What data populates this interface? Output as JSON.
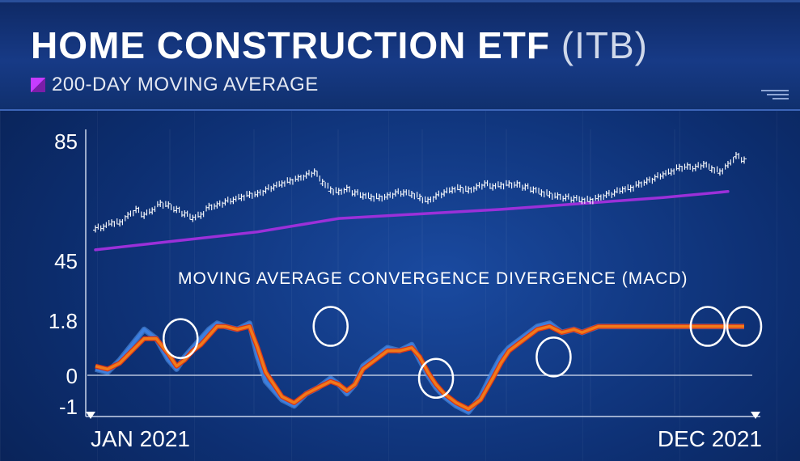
{
  "title": "HOME CONSTRUCTION ETF",
  "ticker": "(ITB)",
  "legend_label": "200-DAY MOVING AVERAGE",
  "colors": {
    "ma200": "#9b30d9",
    "price": "#ffffff",
    "macd_blue": "#3d7fe0",
    "macd_orange": "#f07a1a",
    "macd_red": "#d83418"
  },
  "chart_data": [
    {
      "type": "line",
      "title": "",
      "x_start_label": "JAN 2021",
      "x_end_label": "DEC 2021",
      "ylim": [
        45,
        85
      ],
      "yticks": [
        "85",
        "45"
      ],
      "series": [
        {
          "name": "",
          "style": "ohlc-bars",
          "x": [
            0,
            10,
            20,
            30,
            40,
            50,
            60,
            70,
            80,
            90,
            100,
            110,
            120,
            130,
            140,
            150,
            160,
            170,
            180,
            190,
            200,
            210,
            220,
            230,
            240,
            250,
            260,
            270,
            280,
            290,
            300,
            310,
            320,
            330,
            340,
            350,
            360,
            370,
            380,
            390,
            400,
            410,
            420,
            430,
            440,
            450,
            460,
            470,
            480,
            490,
            500,
            510,
            520,
            530,
            540,
            550,
            560,
            570,
            580,
            590,
            600,
            610,
            620,
            630,
            640,
            650,
            660,
            670,
            680,
            690,
            700,
            710,
            720,
            730,
            740,
            750,
            760,
            770,
            780,
            790,
            800
          ],
          "values": [
            55.0,
            55.5,
            57.0,
            57.0,
            59.5,
            61.5,
            59.5,
            61.0,
            63.5,
            63.0,
            61.5,
            60.0,
            58.5,
            59.5,
            62.5,
            63.0,
            64.0,
            64.5,
            65.5,
            66.5,
            66.8,
            68.0,
            69.0,
            70.0,
            71.0,
            72.0,
            73.0,
            74.0,
            70.5,
            68.0,
            67.5,
            68.5,
            67.0,
            66.0,
            65.5,
            65.5,
            66.0,
            67.0,
            67.0,
            66.5,
            65.5,
            64.5,
            66.0,
            67.0,
            68.0,
            68.5,
            68.0,
            69.0,
            70.0,
            69.0,
            69.5,
            70.0,
            70.0,
            69.0,
            68.0,
            67.0,
            66.5,
            66.0,
            65.5,
            65.0,
            64.5,
            64.5,
            65.5,
            66.5,
            67.0,
            68.0,
            68.5,
            70.0,
            71.0,
            72.0,
            73.0,
            74.0,
            75.5,
            76.0,
            75.5,
            76.5,
            75.0,
            74.0,
            76.5,
            79.5,
            78.0
          ]
        },
        {
          "name": "200-DAY MOVING AVERAGE",
          "style": "line",
          "x": [
            0,
            100,
            200,
            300,
            400,
            500,
            600,
            700,
            780
          ],
          "values": [
            48.0,
            51.0,
            54.0,
            58.5,
            60.0,
            61.5,
            63.5,
            65.5,
            67.5
          ]
        }
      ]
    },
    {
      "type": "line",
      "title": "MOVING AVERAGE CONVERGENCE DIVERGENCE (MACD)",
      "ylim": [
        -1.2,
        1.9
      ],
      "yticks": [
        "1.8",
        "0",
        "-1"
      ],
      "series": [
        {
          "name": "",
          "color": "#3d7fe0",
          "x": [
            0,
            15,
            30,
            45,
            60,
            75,
            90,
            100,
            110,
            120,
            130,
            140,
            150,
            160,
            175,
            190,
            200,
            210,
            220,
            230,
            245,
            260,
            275,
            290,
            300,
            310,
            320,
            330,
            345,
            360,
            375,
            390,
            400,
            410,
            420,
            430,
            445,
            460,
            475,
            490,
            500,
            510,
            520,
            530,
            545,
            560,
            575,
            590,
            600,
            610,
            620,
            630,
            645,
            660,
            675,
            690,
            700,
            710,
            720,
            730,
            745,
            760,
            775,
            790,
            800
          ],
          "values": [
            0.2,
            0.1,
            0.5,
            1.0,
            1.5,
            1.2,
            0.5,
            0.2,
            0.6,
            0.9,
            1.2,
            1.5,
            1.7,
            1.6,
            1.5,
            1.7,
            0.6,
            -0.2,
            -0.5,
            -0.8,
            -1.0,
            -0.6,
            -0.4,
            -0.1,
            -0.3,
            -0.6,
            -0.3,
            0.3,
            0.6,
            0.9,
            0.8,
            1.0,
            0.5,
            0.0,
            -0.4,
            -0.7,
            -1.0,
            -1.2,
            -0.7,
            0.1,
            0.6,
            0.9,
            1.1,
            1.3,
            1.6,
            1.7,
            1.4,
            1.5,
            1.4,
            1.5,
            1.6,
            1.6,
            1.6,
            1.6,
            1.6,
            1.6,
            1.6,
            1.6,
            1.6,
            1.6,
            1.6,
            1.6,
            1.6,
            1.6,
            1.6
          ]
        },
        {
          "name": "",
          "color": "#f07a1a",
          "x": [
            0,
            15,
            30,
            45,
            60,
            75,
            90,
            100,
            110,
            120,
            130,
            140,
            150,
            160,
            175,
            190,
            200,
            210,
            220,
            230,
            245,
            260,
            275,
            290,
            300,
            310,
            320,
            330,
            345,
            360,
            375,
            390,
            400,
            410,
            420,
            430,
            445,
            460,
            475,
            490,
            500,
            510,
            520,
            530,
            545,
            560,
            575,
            590,
            600,
            610,
            620,
            630,
            645,
            660,
            675,
            690,
            700,
            710,
            720,
            730,
            745,
            760,
            775,
            790,
            800
          ],
          "values": [
            0.3,
            0.2,
            0.4,
            0.8,
            1.2,
            1.2,
            0.7,
            0.3,
            0.5,
            0.8,
            1.0,
            1.3,
            1.6,
            1.6,
            1.5,
            1.6,
            0.9,
            0.1,
            -0.3,
            -0.7,
            -0.9,
            -0.6,
            -0.4,
            -0.2,
            -0.3,
            -0.5,
            -0.3,
            0.2,
            0.5,
            0.8,
            0.8,
            0.9,
            0.6,
            0.1,
            -0.3,
            -0.6,
            -0.9,
            -1.1,
            -0.8,
            -0.1,
            0.4,
            0.8,
            1.0,
            1.2,
            1.5,
            1.6,
            1.4,
            1.5,
            1.4,
            1.5,
            1.6,
            1.6,
            1.6,
            1.6,
            1.6,
            1.6,
            1.6,
            1.6,
            1.6,
            1.6,
            1.6,
            1.6,
            1.6,
            1.6,
            1.6
          ]
        }
      ],
      "annotations": [
        {
          "shape": "circle",
          "x": 105,
          "y": 1.2
        },
        {
          "shape": "circle",
          "x": 290,
          "y": 1.6
        },
        {
          "shape": "circle",
          "x": 420,
          "y": -0.1
        },
        {
          "shape": "circle",
          "x": 565,
          "y": 0.6
        },
        {
          "shape": "circle",
          "x": 755,
          "y": 1.6
        },
        {
          "shape": "circle",
          "x": 800,
          "y": 1.6
        }
      ]
    }
  ]
}
